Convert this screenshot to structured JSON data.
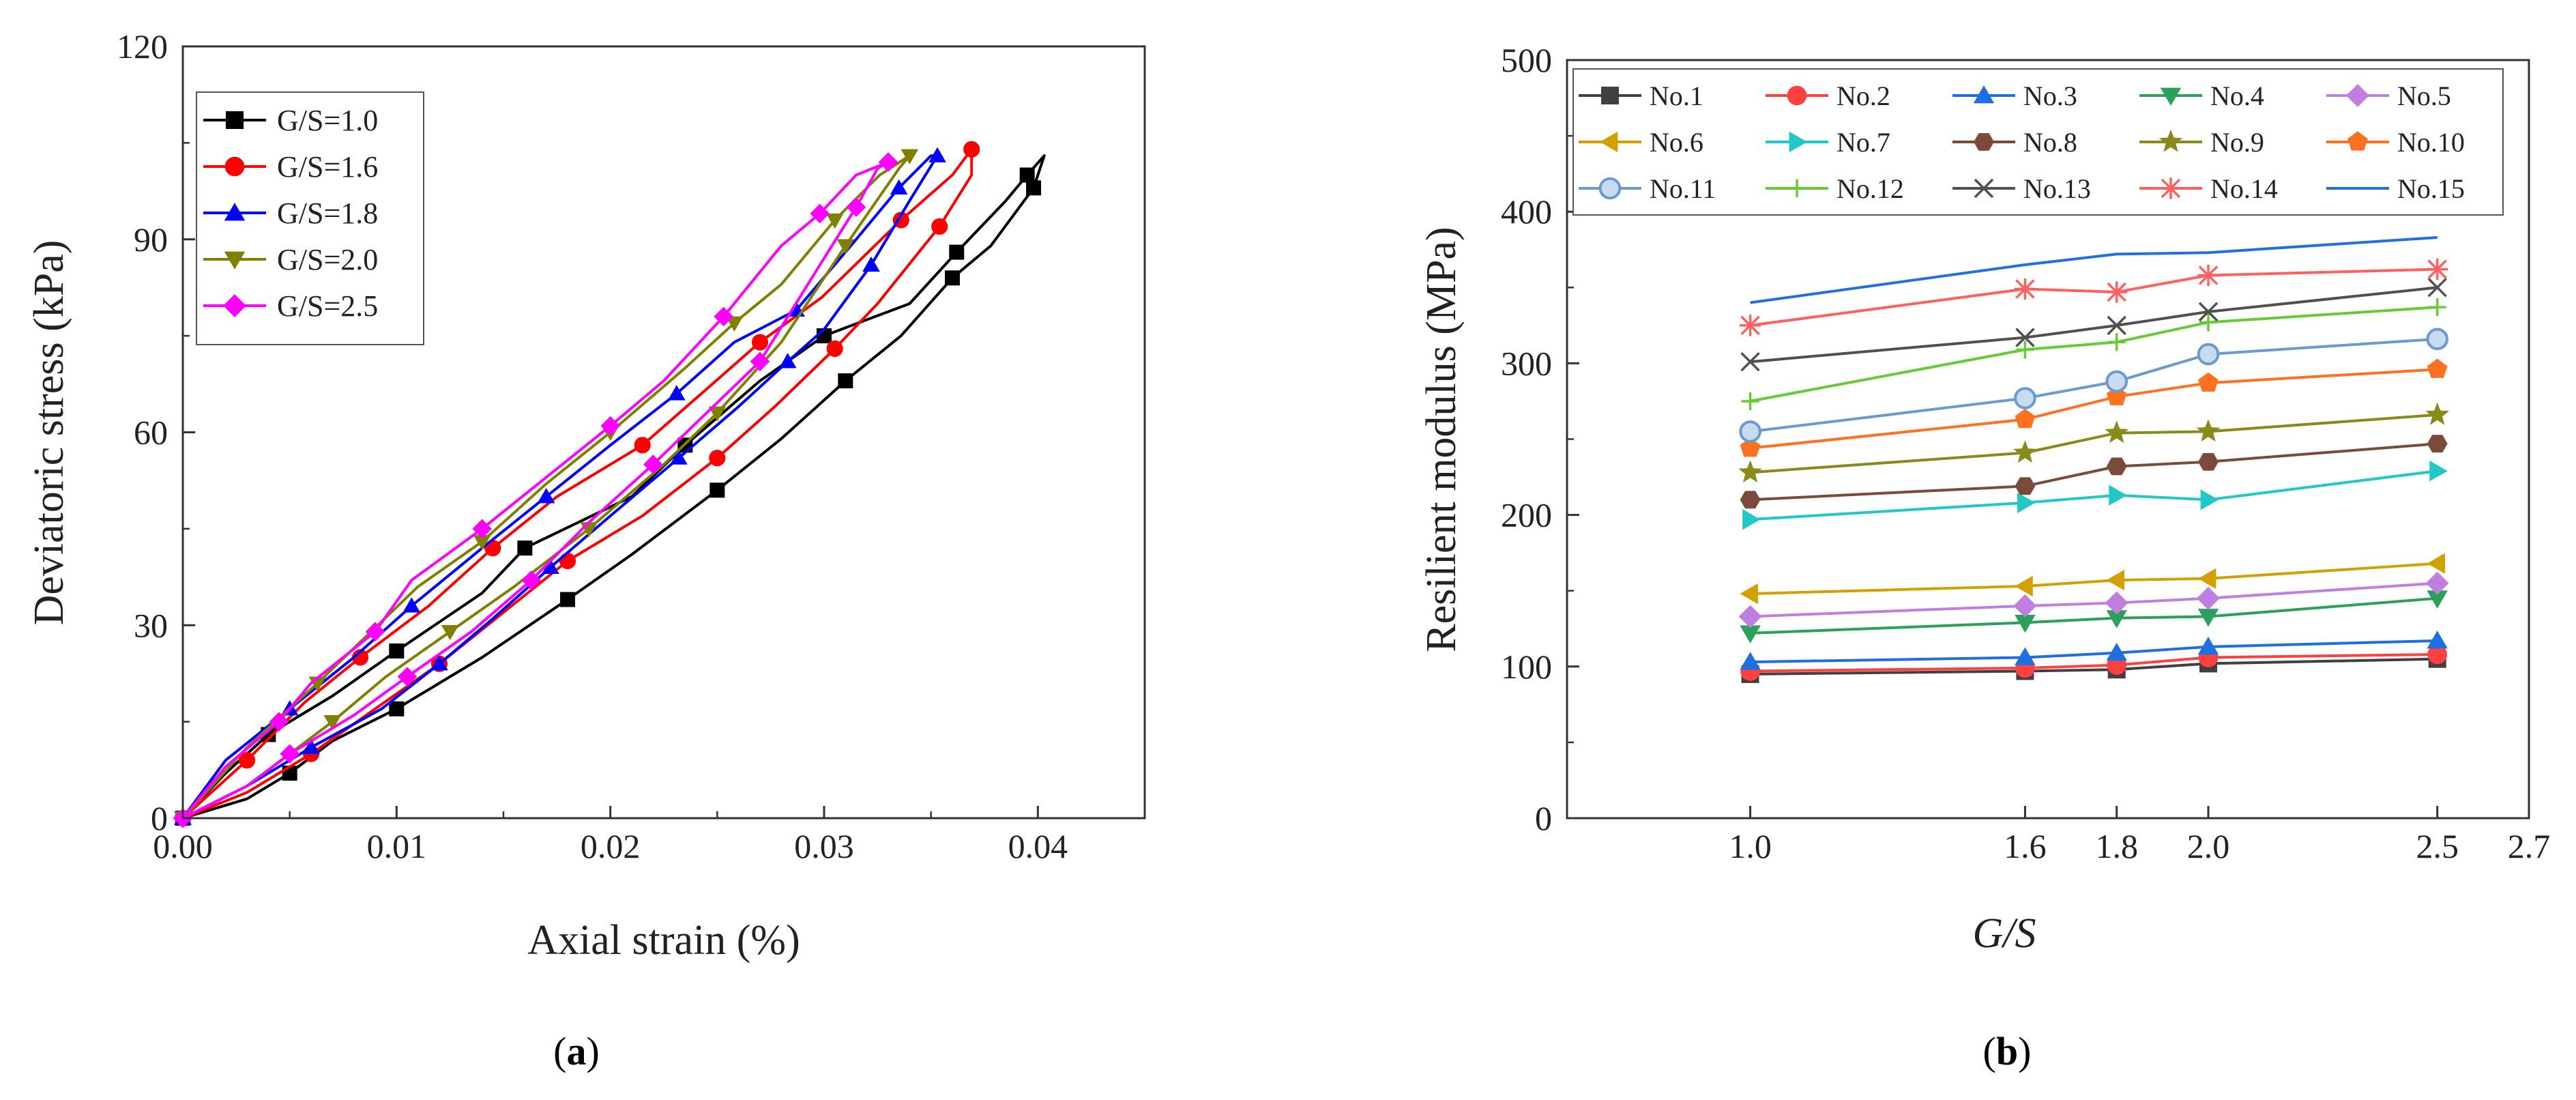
{
  "chart_data": [
    {
      "type": "line",
      "panel_label": "a",
      "xlabel": "Axial strain (%)",
      "ylabel": "Deviatoric stress (kPa)",
      "xlim": [
        0,
        0.045
      ],
      "ylim": [
        0,
        120
      ],
      "xticks": [
        "0.00",
        "0.01",
        "0.02",
        "0.03",
        "0.04"
      ],
      "xtick_values": [
        0,
        0.01,
        0.02,
        0.03,
        0.04
      ],
      "yticks": [
        "0",
        "30",
        "60",
        "90",
        "120"
      ],
      "ytick_values": [
        0,
        30,
        60,
        90,
        120
      ],
      "grid": false,
      "legend_position": "top-left",
      "series": [
        {
          "name": "G/S=1.0",
          "color": "#000000",
          "marker": "square",
          "x": [
            0.0,
            0.003,
            0.005,
            0.007,
            0.01,
            0.014,
            0.018,
            0.021,
            0.025,
            0.028,
            0.031,
            0.0336,
            0.036,
            0.0378,
            0.0398,
            0.0403,
            0.0395,
            0.0385,
            0.0362,
            0.034,
            0.03,
            0.027,
            0.0235,
            0.021,
            0.016,
            0.014,
            0.01,
            0.007,
            0.004,
            0.002,
            0.0
          ],
          "y": [
            0,
            3,
            7,
            12,
            17,
            25,
            34,
            41,
            51,
            59,
            68,
            75,
            84,
            89,
            98,
            103,
            100,
            96,
            88,
            80,
            75,
            68,
            58,
            50,
            42,
            35,
            26,
            19,
            13,
            7,
            0
          ]
        },
        {
          "name": "G/S=1.6",
          "color": "#ff0000",
          "marker": "circle",
          "x": [
            0.0,
            0.003,
            0.006,
            0.009,
            0.012,
            0.015,
            0.018,
            0.0215,
            0.025,
            0.0277,
            0.0305,
            0.0325,
            0.0354,
            0.0369,
            0.0369,
            0.036,
            0.0336,
            0.0299,
            0.027,
            0.0246,
            0.0215,
            0.0175,
            0.0145,
            0.0115,
            0.0083,
            0.0057,
            0.003,
            0.0
          ],
          "y": [
            0,
            4,
            10,
            17,
            24,
            32,
            40,
            47,
            56,
            64,
            73,
            80,
            92,
            100,
            104,
            100,
            93,
            81,
            74,
            67,
            58,
            50,
            42,
            33,
            25,
            18,
            9,
            0
          ]
        },
        {
          "name": "G/S=1.8",
          "color": "#0000ff",
          "marker": "triangle-up",
          "x": [
            0.0,
            0.003,
            0.006,
            0.0093,
            0.012,
            0.0145,
            0.0172,
            0.02,
            0.0232,
            0.026,
            0.0283,
            0.03,
            0.0322,
            0.034,
            0.0353,
            0.035,
            0.0335,
            0.0315,
            0.0287,
            0.0258,
            0.0231,
            0.02,
            0.017,
            0.014,
            0.0107,
            0.008,
            0.005,
            0.002,
            0.0
          ],
          "y": [
            0,
            5,
            11,
            17,
            24,
            31,
            39,
            47,
            56,
            64,
            71,
            76,
            86,
            96,
            103,
            103,
            98,
            90,
            79,
            74,
            66,
            58,
            50,
            42,
            33,
            25,
            17,
            9,
            0
          ]
        },
        {
          "name": "G/S=2.0",
          "color": "#808000",
          "marker": "triangle-down",
          "x": [
            0.0,
            0.003,
            0.007,
            0.0095,
            0.0125,
            0.0155,
            0.019,
            0.0225,
            0.025,
            0.028,
            0.031,
            0.0335,
            0.034,
            0.0326,
            0.0305,
            0.028,
            0.0258,
            0.0235,
            0.02,
            0.017,
            0.014,
            0.011,
            0.0063,
            0.003,
            0.0
          ],
          "y": [
            0,
            5,
            15,
            22,
            29,
            36,
            45,
            55,
            63,
            74,
            89,
            101,
            103,
            100,
            93,
            83,
            77,
            70,
            60,
            52,
            43,
            36,
            21,
            11,
            0
          ]
        },
        {
          "name": "G/S=2.5",
          "color": "#ff00ff",
          "marker": "diamond",
          "x": [
            0.0,
            0.003,
            0.005,
            0.008,
            0.0105,
            0.0135,
            0.0163,
            0.019,
            0.022,
            0.0245,
            0.027,
            0.0298,
            0.0315,
            0.0325,
            0.033,
            0.0315,
            0.0298,
            0.028,
            0.0253,
            0.0225,
            0.02,
            0.017,
            0.014,
            0.0107,
            0.009,
            0.006,
            0.0045,
            0.002,
            0.0
          ],
          "y": [
            0,
            5,
            10,
            16,
            22,
            29,
            37,
            46,
            55,
            63,
            71,
            86,
            95,
            101,
            102,
            100,
            94,
            89,
            78,
            68,
            61,
            53,
            45,
            37,
            29,
            21,
            15,
            8,
            0
          ]
        }
      ]
    },
    {
      "type": "line",
      "panel_label": "b",
      "xlabel": "G/S",
      "ylabel": "Resilient modulus (MPa)",
      "xlim": [
        0.6,
        2.7
      ],
      "ylim": [
        0,
        500
      ],
      "xticks": [
        "1.0",
        "1.6",
        "1.8",
        "2.0",
        "2.5",
        "2.7"
      ],
      "xtick_values": [
        1.0,
        1.6,
        1.8,
        2.0,
        2.5,
        2.7
      ],
      "yticks": [
        "0",
        "100",
        "200",
        "300",
        "400",
        "500"
      ],
      "ytick_values": [
        0,
        100,
        200,
        300,
        400,
        500
      ],
      "grid": false,
      "legend_position": "top",
      "x": [
        1.0,
        1.6,
        1.8,
        2.0,
        2.5
      ],
      "series": [
        {
          "name": "No.1",
          "color": "#404040",
          "marker": "square",
          "values": [
            95,
            97,
            98,
            102,
            105
          ]
        },
        {
          "name": "No.2",
          "color": "#ff4040",
          "marker": "circle",
          "values": [
            97,
            99,
            101,
            106,
            108
          ]
        },
        {
          "name": "No.3",
          "color": "#1f6fe0",
          "marker": "triangle-up",
          "values": [
            103,
            106,
            109,
            113,
            117
          ]
        },
        {
          "name": "No.4",
          "color": "#2aa05a",
          "marker": "triangle-down",
          "values": [
            122,
            129,
            132,
            133,
            145
          ]
        },
        {
          "name": "No.5",
          "color": "#c07fe0",
          "marker": "diamond",
          "values": [
            133,
            140,
            142,
            145,
            155
          ]
        },
        {
          "name": "No.6",
          "color": "#d4a000",
          "marker": "triangle-left",
          "values": [
            148,
            153,
            157,
            158,
            168
          ]
        },
        {
          "name": "No.7",
          "color": "#20c8c8",
          "marker": "triangle-right",
          "values": [
            197,
            208,
            213,
            210,
            229
          ]
        },
        {
          "name": "No.8",
          "color": "#7a4a3a",
          "marker": "hexagon",
          "values": [
            210,
            219,
            232,
            235,
            247
          ]
        },
        {
          "name": "No.9",
          "color": "#8a8a1a",
          "marker": "star",
          "values": [
            228,
            241,
            254,
            255,
            266
          ]
        },
        {
          "name": "No.10",
          "color": "#ff7020",
          "marker": "pentagon",
          "values": [
            244,
            263,
            278,
            287,
            296
          ]
        },
        {
          "name": "No.11",
          "color": "#6a9ad0",
          "marker": "ring",
          "values": [
            255,
            277,
            288,
            306,
            316
          ]
        },
        {
          "name": "No.12",
          "color": "#66cc33",
          "marker": "plus",
          "values": [
            275,
            309,
            314,
            327,
            337
          ]
        },
        {
          "name": "No.13",
          "color": "#505050",
          "marker": "x",
          "values": [
            301,
            317,
            325,
            334,
            350
          ]
        },
        {
          "name": "No.14",
          "color": "#ff6060",
          "marker": "asterisk",
          "values": [
            325,
            349,
            347,
            358,
            362
          ]
        },
        {
          "name": "No.15",
          "color": "#2070e0",
          "marker": "none",
          "values": [
            340,
            365,
            372,
            373,
            383
          ]
        }
      ]
    }
  ]
}
